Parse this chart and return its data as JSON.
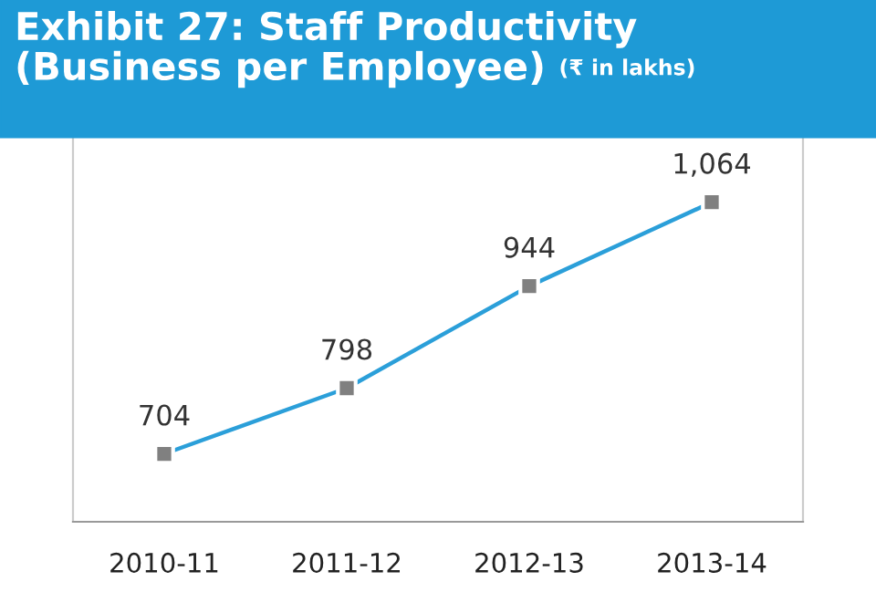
{
  "chart_data": {
    "type": "line",
    "title": "Exhibit 27: Staff Productivity\n(Business per Employee)",
    "subtitle": "(₹ in lakhs)",
    "categories": [
      "2010-11",
      "2011-12",
      "2012-13",
      "2013-14"
    ],
    "series": [
      {
        "color": "#2b9fd9",
        "values": [
          704,
          798,
          944,
          1064
        ],
        "value_labels": [
          "704",
          "798",
          "944",
          "1,064"
        ]
      }
    ],
    "marker": "square",
    "grid": false
  }
}
